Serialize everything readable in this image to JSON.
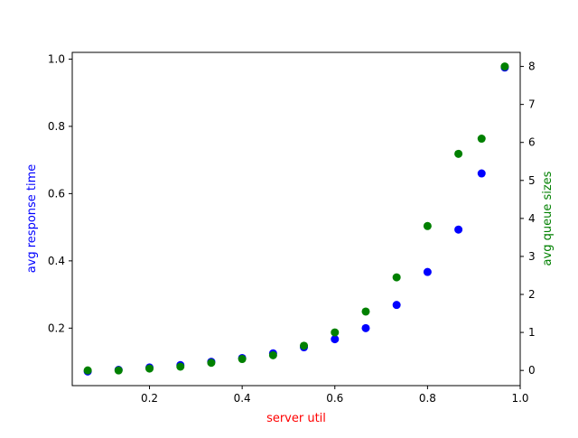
{
  "chart_data": {
    "type": "scatter",
    "title": "",
    "xlabel": "server util",
    "ylabel_left": "avg response time",
    "ylabel_right": "avg queue sizes",
    "colors": {
      "xlabel": "#ff0000",
      "ylabel_left": "#0000ff",
      "ylabel_right": "#008000",
      "series_left": "#0000ff",
      "series_right": "#008000"
    },
    "x_ticks": [
      "0.2",
      "0.4",
      "0.6",
      "0.8",
      "1.0"
    ],
    "y_left_ticks": [
      "0.2",
      "0.4",
      "0.6",
      "0.8",
      "1.0"
    ],
    "y_right_ticks": [
      "0",
      "1",
      "2",
      "3",
      "4",
      "5",
      "6",
      "7",
      "8"
    ],
    "xlim": [
      0.0333,
      1.0
    ],
    "ylim_left": [
      0.029,
      1.02
    ],
    "ylim_right": [
      -0.4,
      8.37
    ],
    "grid": false,
    "legend": "none",
    "x": [
      0.0667,
      0.1333,
      0.2,
      0.2667,
      0.3333,
      0.4,
      0.4667,
      0.5333,
      0.6,
      0.6667,
      0.7333,
      0.8,
      0.8667,
      0.9167,
      0.9667
    ],
    "series": [
      {
        "axis": "left",
        "values": [
          0.071,
          0.076,
          0.083,
          0.09,
          0.1,
          0.111,
          0.125,
          0.143,
          0.167,
          0.2,
          0.269,
          0.367,
          0.493,
          0.66,
          0.975
        ]
      },
      {
        "axis": "right",
        "values": [
          0.0,
          0.0,
          0.05,
          0.1,
          0.2,
          0.3,
          0.4,
          0.65,
          1.0,
          1.55,
          2.45,
          3.8,
          5.7,
          6.1,
          8.0
        ]
      }
    ]
  }
}
